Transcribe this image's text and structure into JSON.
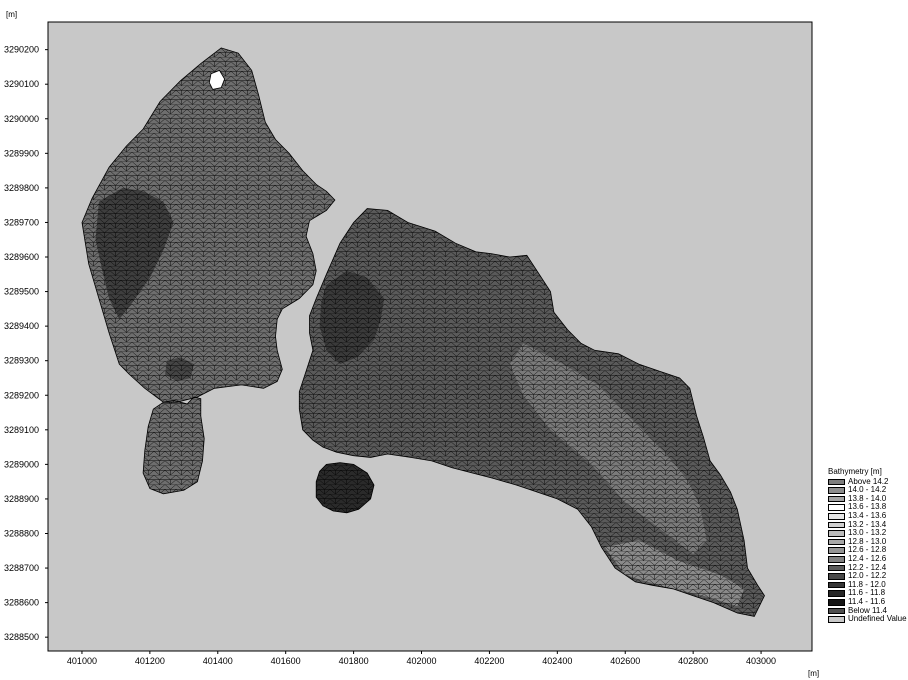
{
  "units": {
    "y": "[m]",
    "x": "[m]"
  },
  "axes": {
    "x": {
      "range": [
        400900,
        403150
      ],
      "ticks": [
        401000,
        401200,
        401400,
        401600,
        401800,
        402000,
        402200,
        402400,
        402600,
        402800,
        403000
      ]
    },
    "y": {
      "range": [
        3288460,
        3290280
      ],
      "ticks": [
        3288500,
        3288600,
        3288700,
        3288800,
        3288900,
        3289000,
        3289100,
        3289200,
        3289300,
        3289400,
        3289500,
        3289600,
        3289700,
        3289800,
        3289900,
        3290000,
        3290100,
        3290200
      ]
    }
  },
  "colors": {
    "background": "#c8c8c8",
    "mesh": "#000000"
  },
  "legend": {
    "title": "Bathymetry [m]",
    "items": [
      {
        "label": "Above 14.2",
        "color": "#7d7d7d"
      },
      {
        "label": "14.0 - 14.2",
        "color": "#8c8c8c"
      },
      {
        "label": "13.8 - 14.0",
        "color": "#a3a3a3"
      },
      {
        "label": "13.6 - 13.8",
        "color": "#ffffff"
      },
      {
        "label": "13.4 - 13.6",
        "color": "#e6e6e6"
      },
      {
        "label": "13.2 - 13.4",
        "color": "#cfcfcf"
      },
      {
        "label": "13.0 - 13.2",
        "color": "#bbbbbb"
      },
      {
        "label": "12.8 - 13.0",
        "color": "#a8a8a8"
      },
      {
        "label": "12.6 - 12.8",
        "color": "#959595"
      },
      {
        "label": "12.4 - 12.6",
        "color": "#828282"
      },
      {
        "label": "12.2 - 12.4",
        "color": "#5a5a5a"
      },
      {
        "label": "12.0 - 12.2",
        "color": "#484848"
      },
      {
        "label": "11.8 - 12.0",
        "color": "#363636"
      },
      {
        "label": "11.6 - 11.8",
        "color": "#262626"
      },
      {
        "label": "11.4 - 11.6",
        "color": "#151515"
      },
      {
        "label": "Below 11.4",
        "color": "#4e4e4e"
      },
      {
        "label": "Undefined Value",
        "color": "#c8c8c8"
      }
    ]
  },
  "regions": [
    {
      "name": "west-basin",
      "fill": "#6e6e6e",
      "outline": [
        [
          401000,
          3289700
        ],
        [
          401030,
          3289770
        ],
        [
          401080,
          3289860
        ],
        [
          401130,
          3289920
        ],
        [
          401180,
          3289970
        ],
        [
          401230,
          3290050
        ],
        [
          401290,
          3290110
        ],
        [
          401350,
          3290160
        ],
        [
          401410,
          3290205
        ],
        [
          401460,
          3290190
        ],
        [
          401500,
          3290140
        ],
        [
          401520,
          3290070
        ],
        [
          401540,
          3289990
        ],
        [
          401570,
          3289940
        ],
        [
          401610,
          3289900
        ],
        [
          401650,
          3289850
        ],
        [
          401690,
          3289810
        ],
        [
          401720,
          3289790
        ],
        [
          401745,
          3289765
        ],
        [
          401720,
          3289735
        ],
        [
          401670,
          3289705
        ],
        [
          401660,
          3289660
        ],
        [
          401680,
          3289610
        ],
        [
          401690,
          3289560
        ],
        [
          401680,
          3289520
        ],
        [
          401660,
          3289500
        ],
        [
          401640,
          3289480
        ],
        [
          401590,
          3289450
        ],
        [
          401575,
          3289420
        ],
        [
          401570,
          3289370
        ],
        [
          401575,
          3289330
        ],
        [
          401590,
          3289275
        ],
        [
          401575,
          3289240
        ],
        [
          401535,
          3289220
        ],
        [
          401470,
          3289230
        ],
        [
          401390,
          3289220
        ],
        [
          401340,
          3289195
        ],
        [
          401280,
          3289180
        ],
        [
          401240,
          3289180
        ],
        [
          401185,
          3289220
        ],
        [
          401140,
          3289260
        ],
        [
          401110,
          3289290
        ],
        [
          401080,
          3289380
        ],
        [
          401050,
          3289480
        ],
        [
          401020,
          3289580
        ]
      ]
    },
    {
      "name": "west-lobe",
      "fill": "#6e6e6e",
      "outline": [
        [
          401240,
          3289180
        ],
        [
          401270,
          3289185
        ],
        [
          401310,
          3289175
        ],
        [
          401330,
          3289195
        ],
        [
          401350,
          3289190
        ],
        [
          401350,
          3289140
        ],
        [
          401360,
          3289075
        ],
        [
          401355,
          3289010
        ],
        [
          401340,
          3288950
        ],
        [
          401300,
          3288925
        ],
        [
          401240,
          3288915
        ],
        [
          401200,
          3288930
        ],
        [
          401180,
          3288975
        ],
        [
          401185,
          3289040
        ],
        [
          401195,
          3289110
        ],
        [
          401210,
          3289160
        ]
      ]
    },
    {
      "name": "east-basin",
      "fill": "#5a5a5a",
      "outline": [
        [
          401690,
          3289480
        ],
        [
          401720,
          3289550
        ],
        [
          401760,
          3289640
        ],
        [
          401800,
          3289700
        ],
        [
          401840,
          3289740
        ],
        [
          401900,
          3289735
        ],
        [
          401960,
          3289700
        ],
        [
          402040,
          3289675
        ],
        [
          402100,
          3289640
        ],
        [
          402160,
          3289615
        ],
        [
          402205,
          3289610
        ],
        [
          402260,
          3289600
        ],
        [
          402310,
          3289605
        ],
        [
          402340,
          3289560
        ],
        [
          402380,
          3289500
        ],
        [
          402390,
          3289440
        ],
        [
          402430,
          3289390
        ],
        [
          402470,
          3289350
        ],
        [
          402510,
          3289330
        ],
        [
          402580,
          3289320
        ],
        [
          402640,
          3289290
        ],
        [
          402700,
          3289270
        ],
        [
          402760,
          3289250
        ],
        [
          402790,
          3289220
        ],
        [
          402810,
          3289140
        ],
        [
          402830,
          3289080
        ],
        [
          402850,
          3289010
        ],
        [
          402880,
          3288970
        ],
        [
          402910,
          3288920
        ],
        [
          402930,
          3288870
        ],
        [
          402950,
          3288780
        ],
        [
          402960,
          3288700
        ],
        [
          402990,
          3288650
        ],
        [
          403010,
          3288620
        ],
        [
          402980,
          3288560
        ],
        [
          402930,
          3288570
        ],
        [
          402860,
          3288600
        ],
        [
          402800,
          3288620
        ],
        [
          402740,
          3288640
        ],
        [
          402680,
          3288650
        ],
        [
          402630,
          3288660
        ],
        [
          402570,
          3288700
        ],
        [
          402530,
          3288760
        ],
        [
          402500,
          3288820
        ],
        [
          402460,
          3288870
        ],
        [
          402400,
          3288900
        ],
        [
          402340,
          3288920
        ],
        [
          402280,
          3288940
        ],
        [
          402210,
          3288960
        ],
        [
          402150,
          3288975
        ],
        [
          402090,
          3288990
        ],
        [
          402030,
          3289010
        ],
        [
          401970,
          3289020
        ],
        [
          401900,
          3289030
        ],
        [
          401850,
          3289020
        ],
        [
          401800,
          3289025
        ],
        [
          401750,
          3289035
        ],
        [
          401710,
          3289050
        ],
        [
          401680,
          3289070
        ],
        [
          401650,
          3289100
        ],
        [
          401640,
          3289160
        ],
        [
          401640,
          3289210
        ],
        [
          401660,
          3289270
        ],
        [
          401680,
          3289330
        ],
        [
          401670,
          3289380
        ],
        [
          401670,
          3289430
        ]
      ]
    },
    {
      "name": "south-island",
      "fill": "#2a2a2a",
      "outline": [
        [
          401720,
          3289000
        ],
        [
          401760,
          3289005
        ],
        [
          401800,
          3289000
        ],
        [
          401840,
          3288975
        ],
        [
          401860,
          3288940
        ],
        [
          401850,
          3288900
        ],
        [
          401815,
          3288870
        ],
        [
          401780,
          3288860
        ],
        [
          401740,
          3288865
        ],
        [
          401710,
          3288880
        ],
        [
          401690,
          3288905
        ],
        [
          401690,
          3288950
        ],
        [
          401700,
          3288980
        ]
      ]
    }
  ],
  "shades": [
    {
      "name": "west-dark-zone",
      "fill": "#3e3e3e",
      "outline": [
        [
          401050,
          3289760
        ],
        [
          401120,
          3289800
        ],
        [
          401180,
          3289790
        ],
        [
          401240,
          3289760
        ],
        [
          401270,
          3289700
        ],
        [
          401240,
          3289620
        ],
        [
          401200,
          3289540
        ],
        [
          401150,
          3289470
        ],
        [
          401110,
          3289420
        ],
        [
          401080,
          3289480
        ],
        [
          401060,
          3289560
        ],
        [
          401040,
          3289650
        ]
      ]
    },
    {
      "name": "west-dark-patch",
      "fill": "#454545",
      "outline": [
        [
          401250,
          3289300
        ],
        [
          401290,
          3289310
        ],
        [
          401330,
          3289290
        ],
        [
          401320,
          3289250
        ],
        [
          401280,
          3289240
        ],
        [
          401245,
          3289260
        ]
      ]
    },
    {
      "name": "east-dark-zone",
      "fill": "#3a3a3a",
      "outline": [
        [
          401720,
          3289520
        ],
        [
          401780,
          3289560
        ],
        [
          401840,
          3289540
        ],
        [
          401890,
          3289480
        ],
        [
          401880,
          3289420
        ],
        [
          401860,
          3289360
        ],
        [
          401810,
          3289310
        ],
        [
          401760,
          3289290
        ],
        [
          401720,
          3289330
        ],
        [
          401700,
          3289400
        ],
        [
          401705,
          3289470
        ]
      ]
    },
    {
      "name": "east-light-zone",
      "fill": "#7a7a7a",
      "outline": [
        [
          402300,
          3289350
        ],
        [
          402400,
          3289300
        ],
        [
          402520,
          3289230
        ],
        [
          402620,
          3289130
        ],
        [
          402720,
          3289030
        ],
        [
          402780,
          3288960
        ],
        [
          402820,
          3288880
        ],
        [
          402840,
          3288780
        ],
        [
          402800,
          3288740
        ],
        [
          402720,
          3288800
        ],
        [
          402600,
          3288890
        ],
        [
          402500,
          3289000
        ],
        [
          402380,
          3289100
        ],
        [
          402300,
          3289200
        ],
        [
          402260,
          3289290
        ]
      ]
    },
    {
      "name": "southeast-light-zone",
      "fill": "#8a8a8a",
      "outline": [
        [
          402540,
          3288760
        ],
        [
          402640,
          3288780
        ],
        [
          402760,
          3288720
        ],
        [
          402880,
          3288680
        ],
        [
          402950,
          3288640
        ],
        [
          402930,
          3288590
        ],
        [
          402830,
          3288620
        ],
        [
          402700,
          3288650
        ],
        [
          402600,
          3288680
        ]
      ]
    }
  ],
  "holes": [
    {
      "name": "north-hole",
      "outline": [
        [
          401380,
          3290130
        ],
        [
          401405,
          3290140
        ],
        [
          401420,
          3290115
        ],
        [
          401410,
          3290090
        ],
        [
          401385,
          3290085
        ],
        [
          401375,
          3290105
        ]
      ]
    }
  ]
}
